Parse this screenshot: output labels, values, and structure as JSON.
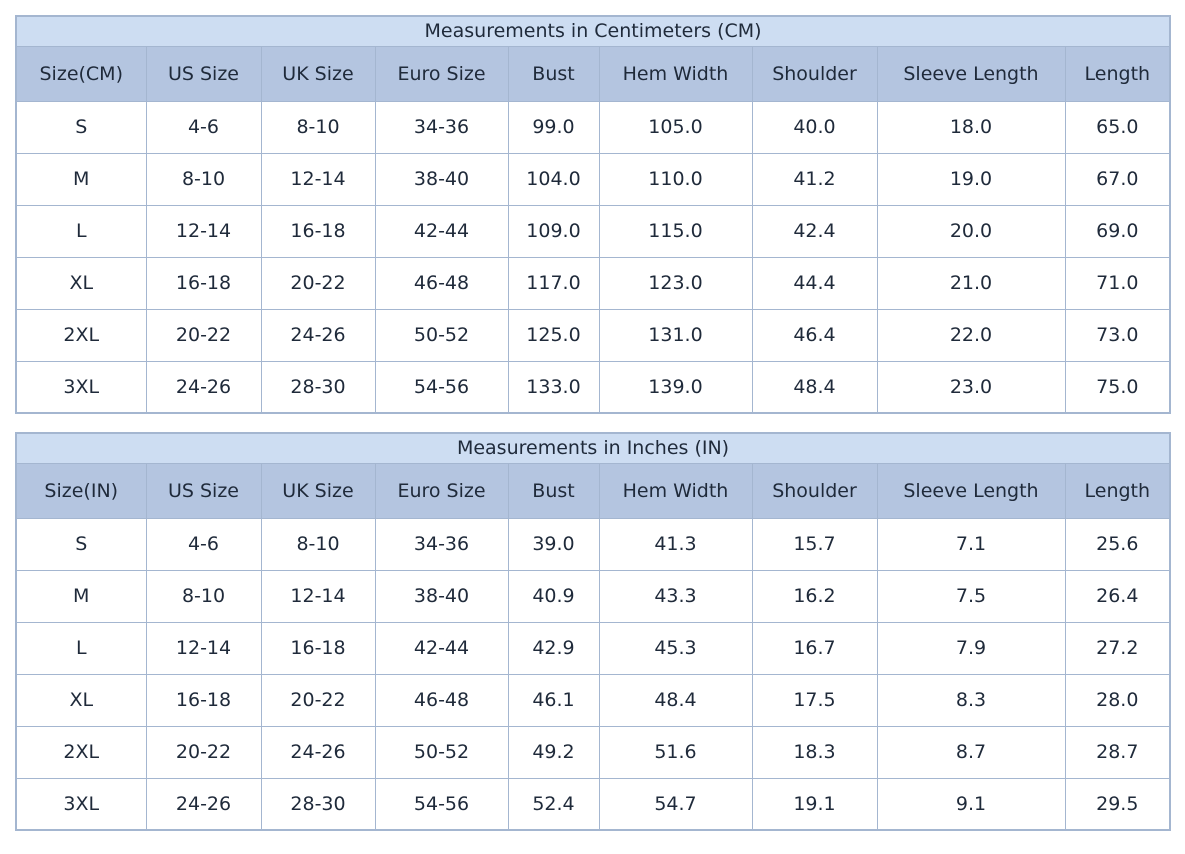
{
  "colors": {
    "page_bg": "#ffffff",
    "title_bg": "#cdddf2",
    "header_bg": "#b4c5e0",
    "row_bg": "#ffffff",
    "border": "#a4b6d0",
    "text": "#1f2a3a"
  },
  "chart_data": [
    {
      "type": "table",
      "title": "Measurements in Centimeters (CM)",
      "columns": [
        "Size(CM)",
        "US Size",
        "UK Size",
        "Euro Size",
        "Bust",
        "Hem Width",
        "Shoulder",
        "Sleeve Length",
        "Length"
      ],
      "rows": [
        [
          "S",
          "4-6",
          "8-10",
          "34-36",
          "99.0",
          "105.0",
          "40.0",
          "18.0",
          "65.0"
        ],
        [
          "M",
          "8-10",
          "12-14",
          "38-40",
          "104.0",
          "110.0",
          "41.2",
          "19.0",
          "67.0"
        ],
        [
          "L",
          "12-14",
          "16-18",
          "42-44",
          "109.0",
          "115.0",
          "42.4",
          "20.0",
          "69.0"
        ],
        [
          "XL",
          "16-18",
          "20-22",
          "46-48",
          "117.0",
          "123.0",
          "44.4",
          "21.0",
          "71.0"
        ],
        [
          "2XL",
          "20-22",
          "24-26",
          "50-52",
          "125.0",
          "131.0",
          "46.4",
          "22.0",
          "73.0"
        ],
        [
          "3XL",
          "24-26",
          "28-30",
          "54-56",
          "133.0",
          "139.0",
          "48.4",
          "23.0",
          "75.0"
        ]
      ]
    },
    {
      "type": "table",
      "title": "Measurements in Inches (IN)",
      "columns": [
        "Size(IN)",
        "US Size",
        "UK Size",
        "Euro Size",
        "Bust",
        "Hem Width",
        "Shoulder",
        "Sleeve Length",
        "Length"
      ],
      "rows": [
        [
          "S",
          "4-6",
          "8-10",
          "34-36",
          "39.0",
          "41.3",
          "15.7",
          "7.1",
          "25.6"
        ],
        [
          "M",
          "8-10",
          "12-14",
          "38-40",
          "40.9",
          "43.3",
          "16.2",
          "7.5",
          "26.4"
        ],
        [
          "L",
          "12-14",
          "16-18",
          "42-44",
          "42.9",
          "45.3",
          "16.7",
          "7.9",
          "27.2"
        ],
        [
          "XL",
          "16-18",
          "20-22",
          "46-48",
          "46.1",
          "48.4",
          "17.5",
          "8.3",
          "28.0"
        ],
        [
          "2XL",
          "20-22",
          "24-26",
          "50-52",
          "49.2",
          "51.6",
          "18.3",
          "8.7",
          "28.7"
        ],
        [
          "3XL",
          "24-26",
          "28-30",
          "54-56",
          "52.4",
          "54.7",
          "19.1",
          "9.1",
          "29.5"
        ]
      ]
    }
  ]
}
